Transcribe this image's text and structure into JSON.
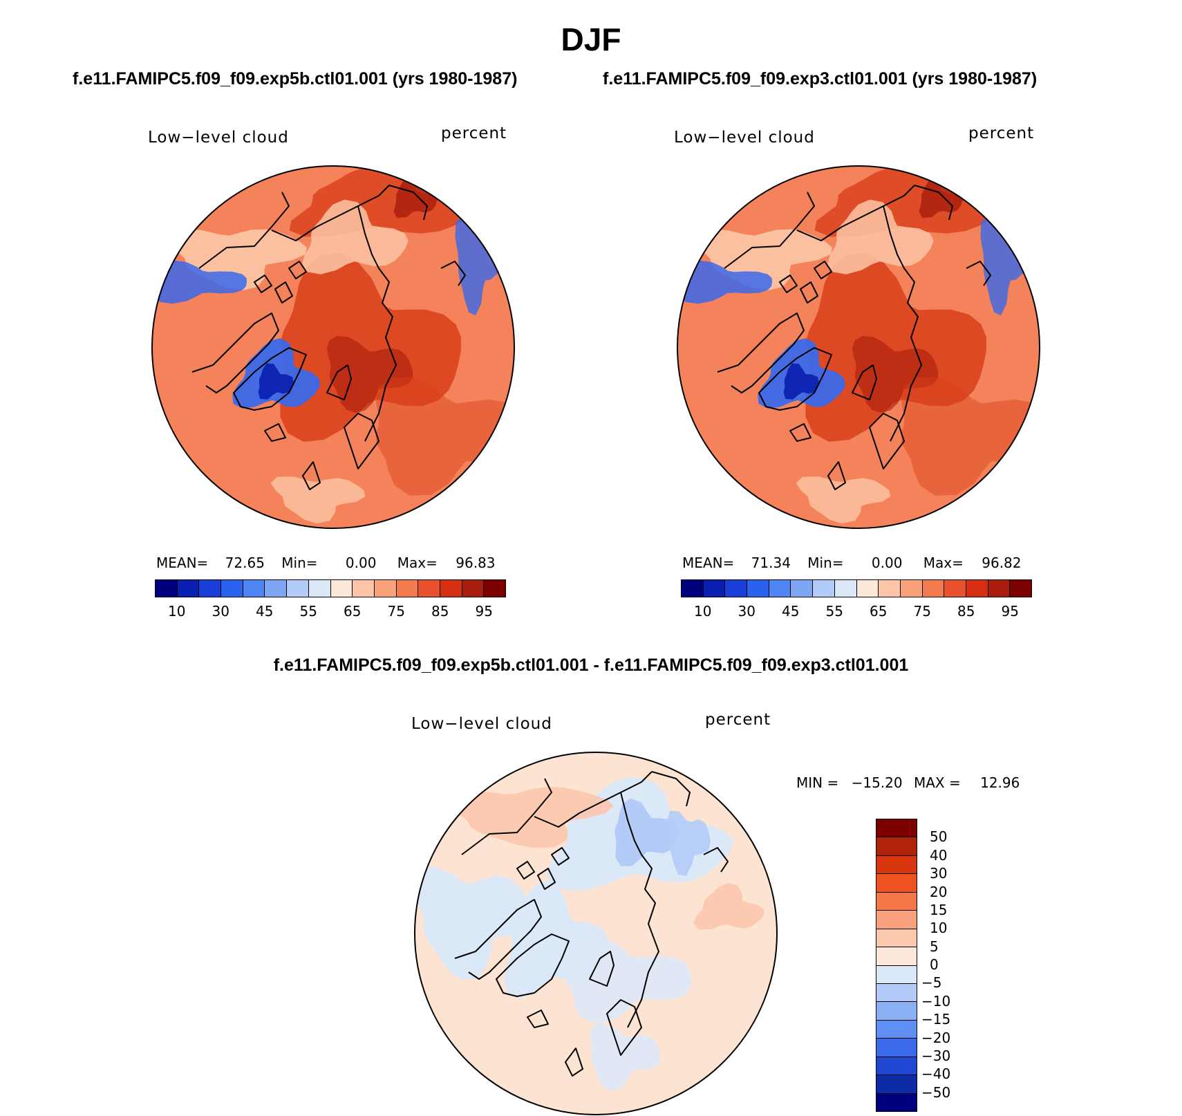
{
  "header": {
    "season": "DJF",
    "case_a_title": "f.e11.FAMIPC5.f09_f09.exp5b.ctl01.001 (yrs 1980-1987)",
    "case_b_title": "f.e11.FAMIPC5.f09_f09.exp3.ctl01.001 (yrs 1980-1987)",
    "diff_title": "f.e11.FAMIPC5.f09_f09.exp5b.ctl01.001 - f.e11.FAMIPC5.f09_f09.exp3.ctl01.001"
  },
  "panels": {
    "a": {
      "variable": "Low−level cloud",
      "units": "percent",
      "mean_label": "MEAN=",
      "mean": "72.65",
      "min_label": "Min=",
      "min": "0.00",
      "max_label": "Max=",
      "max": "96.83"
    },
    "b": {
      "variable": "Low−level cloud",
      "units": "percent",
      "mean_label": "MEAN=",
      "mean": "71.34",
      "min_label": "Min=",
      "min": "0.00",
      "max_label": "Max=",
      "max": "96.82"
    },
    "diff": {
      "variable": "Low−level cloud",
      "units": "percent",
      "min_label": "MIN =",
      "min": "−15.20",
      "max_label": "MAX =",
      "max": "12.96"
    }
  },
  "colorbars": {
    "fields": {
      "colors": [
        "#00007f",
        "#0a1fb0",
        "#1a3fd8",
        "#2a62f0",
        "#4f86f5",
        "#7ea6f5",
        "#b3ccf7",
        "#dbe8f7",
        "#fde9da",
        "#fcc6a6",
        "#f9a178",
        "#f47a4f",
        "#e9512c",
        "#d52e12",
        "#a81d0c",
        "#7c0000"
      ],
      "labels": [
        "10",
        "30",
        "45",
        "55",
        "65",
        "75",
        "85",
        "95"
      ]
    },
    "diff": {
      "colors": [
        "#7c0000",
        "#b0220c",
        "#d8360f",
        "#ee5220",
        "#f67849",
        "#f9a07c",
        "#fbc7ad",
        "#fde8da",
        "#dbe8f7",
        "#b3ccf7",
        "#8bb1f5",
        "#5f8ff2",
        "#3a69ea",
        "#1f47d2",
        "#0d2aa7",
        "#00007f"
      ],
      "labels": [
        "50",
        "40",
        "30",
        "20",
        "15",
        "10",
        "5",
        "0",
        "−5",
        "−10",
        "−15",
        "−20",
        "−30",
        "−40",
        "−50"
      ]
    }
  },
  "map_colors": {
    "field_base": "#f4825a",
    "field_high": "#d8401a",
    "field_higher": "#a81d0c",
    "field_pale": "#fcc6a6",
    "field_blue": "#3a69ea",
    "field_dark_blue": "#0a1fb0",
    "diff_base": "#fde4d2",
    "diff_warm": "#fbc7ad",
    "diff_cool": "#dbe8f7",
    "diff_blue": "#b3ccf7",
    "coast": "#000000"
  }
}
